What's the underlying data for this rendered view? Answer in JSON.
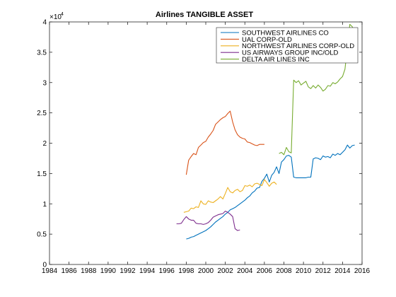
{
  "chart_data": {
    "type": "line",
    "title": "Airlines TANGIBLE ASSET",
    "xlabel": "",
    "ylabel": "",
    "y_exponent_label": "×10",
    "y_exponent_power": "4",
    "xlim": [
      1984,
      2016
    ],
    "ylim": [
      0,
      40000
    ],
    "x_ticks": [
      1984,
      1986,
      1988,
      1990,
      1992,
      1994,
      1996,
      1998,
      2000,
      2002,
      2004,
      2006,
      2008,
      2010,
      2012,
      2014,
      2016
    ],
    "x_tick_labels": [
      "1984",
      "1986",
      "1988",
      "1990",
      "1992",
      "1994",
      "1996",
      "1998",
      "2000",
      "2002",
      "2004",
      "2006",
      "2008",
      "2010",
      "2012",
      "2014",
      "2016"
    ],
    "y_ticks": [
      0,
      5000,
      10000,
      15000,
      20000,
      25000,
      30000,
      35000,
      40000
    ],
    "y_tick_labels": [
      "0",
      "0.5",
      "1",
      "1.5",
      "2",
      "2.5",
      "3",
      "3.5",
      "4"
    ],
    "grid": false,
    "legend_position": "top-right",
    "series": [
      {
        "name": "SOUTHWEST AIRLINES CO",
        "color": "#0072bd",
        "x": [
          1998.0,
          1998.25,
          1998.5,
          1998.75,
          1999.0,
          1999.25,
          1999.5,
          1999.75,
          2000.0,
          2000.25,
          2000.5,
          2000.75,
          2001.0,
          2001.25,
          2001.5,
          2001.75,
          2002.0,
          2002.25,
          2002.5,
          2002.75,
          2003.0,
          2003.25,
          2003.5,
          2003.75,
          2004.0,
          2004.25,
          2004.5,
          2004.75,
          2005.0,
          2005.25,
          2005.5,
          2005.75,
          2006.0,
          2006.25,
          2006.5,
          2006.75,
          2007.0,
          2007.25,
          2007.5,
          2007.75,
          2008.0,
          2008.25,
          2008.5,
          2008.75,
          2009.0,
          2009.25,
          2009.5,
          2009.75,
          2010.0,
          2010.25,
          2010.5,
          2010.75,
          2011.0,
          2011.25,
          2011.5,
          2011.75,
          2012.0,
          2012.25,
          2012.5,
          2012.75,
          2013.0,
          2013.25,
          2013.5,
          2013.75,
          2014.0,
          2014.25,
          2014.5,
          2014.75,
          2015.0,
          2015.25
        ],
        "y": [
          4200,
          4300,
          4500,
          4600,
          4800,
          5000,
          5200,
          5400,
          5600,
          5900,
          6200,
          6600,
          7000,
          7300,
          7600,
          7900,
          8300,
          8600,
          9000,
          9200,
          9400,
          9700,
          10000,
          10300,
          10600,
          11000,
          11300,
          11800,
          12100,
          12600,
          12700,
          13700,
          14200,
          14900,
          13600,
          14700,
          15200,
          16100,
          15000,
          16900,
          17300,
          17900,
          18000,
          17700,
          14400,
          14300,
          14300,
          14300,
          14300,
          14300,
          14400,
          14400,
          17400,
          17600,
          17500,
          17300,
          17900,
          17700,
          17800,
          17600,
          18200,
          18000,
          18300,
          18100,
          18500,
          18900,
          19700,
          19200,
          19600,
          19700
        ]
      },
      {
        "name": "UAL CORP-OLD",
        "color": "#d95319",
        "x": [
          1998.0,
          1998.25,
          1998.5,
          1998.75,
          1999.0,
          1999.25,
          1999.5,
          1999.75,
          2000.0,
          2000.25,
          2000.5,
          2000.75,
          2001.0,
          2001.25,
          2001.5,
          2001.75,
          2002.0,
          2002.25,
          2002.5,
          2002.75,
          2003.0,
          2003.25,
          2003.5,
          2003.75,
          2004.0,
          2004.25,
          2004.5,
          2004.75,
          2005.0,
          2005.25,
          2005.5,
          2005.75,
          2006.0
        ],
        "y": [
          14800,
          17200,
          17800,
          18300,
          18100,
          19300,
          19700,
          20100,
          20300,
          21000,
          21500,
          22100,
          23100,
          23500,
          23900,
          24200,
          24400,
          24900,
          25300,
          23500,
          22200,
          21400,
          21000,
          20800,
          20700,
          20200,
          20100,
          19900,
          19700,
          19600,
          19800,
          19800,
          19800
        ]
      },
      {
        "name": "NORTHWEST AIRLINES CORP-OLD",
        "color": "#edb120",
        "x": [
          1997.75,
          1998.0,
          1998.25,
          1998.5,
          1998.75,
          1999.0,
          1999.25,
          1999.5,
          1999.75,
          2000.0,
          2000.25,
          2000.5,
          2000.75,
          2001.0,
          2001.25,
          2001.5,
          2001.75,
          2002.0,
          2002.25,
          2002.5,
          2002.75,
          2003.0,
          2003.25,
          2003.5,
          2003.75,
          2004.0,
          2004.25,
          2004.5,
          2004.75,
          2005.0,
          2005.25,
          2005.5,
          2005.75,
          2006.0,
          2006.25,
          2006.5,
          2006.75,
          2007.0,
          2007.25
        ],
        "y": [
          8600,
          8700,
          8800,
          9300,
          9200,
          9500,
          9400,
          10500,
          10000,
          9900,
          10500,
          10300,
          10200,
          10500,
          10800,
          11200,
          10800,
          11700,
          12700,
          12000,
          11800,
          12200,
          12400,
          12000,
          12200,
          13000,
          12900,
          13100,
          12800,
          13300,
          13400,
          13200,
          13000,
          14000,
          13500,
          12900,
          13400,
          13600,
          13200
        ]
      },
      {
        "name": "US AIRWAYS GROUP INC/OLD",
        "color": "#7e2f8e",
        "x": [
          1997.0,
          1997.25,
          1997.5,
          1997.75,
          1998.0,
          1998.25,
          1998.5,
          1998.75,
          1999.0,
          1999.25,
          1999.5,
          1999.75,
          2000.0,
          2000.25,
          2000.5,
          2000.75,
          2001.0,
          2001.25,
          2001.5,
          2001.75,
          2002.0,
          2002.25,
          2002.5,
          2002.75,
          2003.0,
          2003.25,
          2003.5
        ],
        "y": [
          6700,
          6700,
          6800,
          7400,
          7900,
          7500,
          7300,
          7300,
          6800,
          6700,
          6700,
          6600,
          6700,
          6900,
          7300,
          7800,
          8000,
          8200,
          8300,
          8400,
          8800,
          8600,
          8300,
          7900,
          5900,
          5600,
          5700
        ]
      },
      {
        "name": "DELTA AIR LINES INC",
        "color": "#77ac30",
        "x": [
          2007.5,
          2007.75,
          2008.0,
          2008.25,
          2008.5,
          2008.75,
          2009.0,
          2009.25,
          2009.5,
          2009.75,
          2010.0,
          2010.25,
          2010.5,
          2010.75,
          2011.0,
          2011.25,
          2011.5,
          2011.75,
          2012.0,
          2012.25,
          2012.5,
          2012.75,
          2013.0,
          2013.25,
          2013.5,
          2013.75,
          2014.0,
          2014.25,
          2014.5,
          2014.75,
          2015.0,
          2015.25
        ],
        "y": [
          18300,
          18500,
          18100,
          19300,
          18600,
          18400,
          30400,
          30000,
          30300,
          29600,
          29900,
          30200,
          29300,
          29000,
          29500,
          29100,
          29600,
          29200,
          28600,
          28900,
          29500,
          29400,
          30000,
          29800,
          30100,
          30600,
          31000,
          32200,
          35800,
          39600,
          39200,
          38300
        ]
      }
    ]
  }
}
